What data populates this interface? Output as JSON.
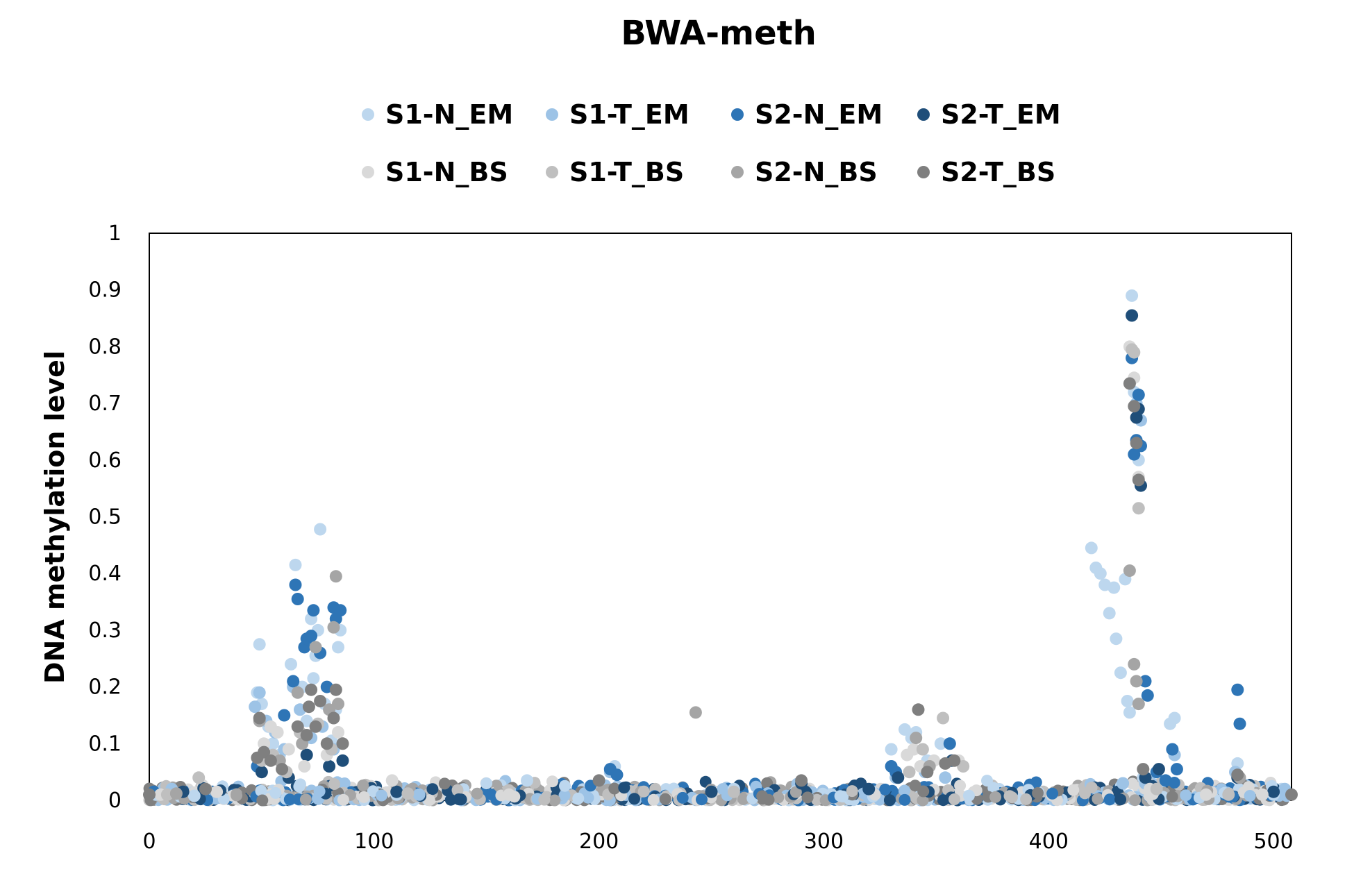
{
  "chart_data": {
    "type": "scatter",
    "title": "BWA-meth",
    "xlabel": "",
    "ylabel": "DNA methylation level",
    "xlim": [
      0,
      508
    ],
    "ylim": [
      0,
      1
    ],
    "x_ticks": [
      "0",
      "100",
      "200",
      "300",
      "400",
      "500"
    ],
    "y_ticks": [
      "0",
      "0.1",
      "0.2",
      "0.3",
      "0.4",
      "0.5",
      "0.6",
      "0.7",
      "0.8",
      "0.9",
      "1"
    ],
    "grid": false,
    "legend_position": "top",
    "series": [
      {
        "name": "S1-N_EM",
        "color": "#bdd7ee",
        "points": [
          [
            3,
            0.01
          ],
          [
            20,
            0.008
          ],
          [
            48,
            0.19
          ],
          [
            49,
            0.275
          ],
          [
            50,
            0.17
          ],
          [
            53,
            0.13
          ],
          [
            55,
            0.1
          ],
          [
            58,
            0.08
          ],
          [
            63,
            0.24
          ],
          [
            65,
            0.415
          ],
          [
            68,
            0.2
          ],
          [
            70,
            0.14
          ],
          [
            72,
            0.32
          ],
          [
            73,
            0.215
          ],
          [
            74,
            0.255
          ],
          [
            75,
            0.3
          ],
          [
            76,
            0.478
          ],
          [
            78,
            0.17
          ],
          [
            81,
            0.105
          ],
          [
            83,
            0.16
          ],
          [
            84,
            0.27
          ],
          [
            85,
            0.3
          ],
          [
            110,
            0.01
          ],
          [
            168,
            0.035
          ],
          [
            207,
            0.06
          ],
          [
            260,
            0.02
          ],
          [
            330,
            0.09
          ],
          [
            336,
            0.125
          ],
          [
            339,
            0.11
          ],
          [
            341,
            0.12
          ],
          [
            346,
            0.07
          ],
          [
            352,
            0.1
          ],
          [
            356,
            0.1
          ],
          [
            419,
            0.445
          ],
          [
            421,
            0.41
          ],
          [
            423,
            0.4
          ],
          [
            425,
            0.38
          ],
          [
            427,
            0.33
          ],
          [
            429,
            0.375
          ],
          [
            430,
            0.285
          ],
          [
            432,
            0.225
          ],
          [
            434,
            0.39
          ],
          [
            435,
            0.175
          ],
          [
            436,
            0.155
          ],
          [
            437,
            0.89
          ],
          [
            438,
            0.72
          ],
          [
            440,
            0.6
          ],
          [
            442,
            0.04
          ],
          [
            454,
            0.135
          ],
          [
            456,
            0.145
          ],
          [
            484,
            0.065
          ],
          [
            500,
            0.01
          ]
        ]
      },
      {
        "name": "S1-T_EM",
        "color": "#9dc3e6",
        "points": [
          [
            10,
            0.02
          ],
          [
            47,
            0.165
          ],
          [
            49,
            0.19
          ],
          [
            52,
            0.14
          ],
          [
            56,
            0.12
          ],
          [
            60,
            0.09
          ],
          [
            64,
            0.2
          ],
          [
            67,
            0.16
          ],
          [
            72,
            0.11
          ],
          [
            77,
            0.13
          ],
          [
            82,
            0.09
          ],
          [
            120,
            0.01
          ],
          [
            205,
            0.05
          ],
          [
            332,
            0.04
          ],
          [
            345,
            0.05
          ],
          [
            354,
            0.04
          ],
          [
            433,
            0.03
          ],
          [
            437,
            0.78
          ],
          [
            439,
            0.7
          ],
          [
            441,
            0.67
          ],
          [
            443,
            0.03
          ],
          [
            456,
            0.08
          ],
          [
            483,
            0.05
          ],
          [
            505,
            0.02
          ]
        ]
      },
      {
        "name": "S2-N_EM",
        "color": "#2e75b6",
        "points": [
          [
            2,
            0.015
          ],
          [
            48,
            0.06
          ],
          [
            60,
            0.15
          ],
          [
            64,
            0.21
          ],
          [
            65,
            0.38
          ],
          [
            66,
            0.355
          ],
          [
            69,
            0.27
          ],
          [
            70,
            0.285
          ],
          [
            72,
            0.29
          ],
          [
            73,
            0.335
          ],
          [
            76,
            0.26
          ],
          [
            79,
            0.2
          ],
          [
            82,
            0.34
          ],
          [
            83,
            0.32
          ],
          [
            85,
            0.335
          ],
          [
            205,
            0.055
          ],
          [
            208,
            0.045
          ],
          [
            330,
            0.06
          ],
          [
            332,
            0.05
          ],
          [
            356,
            0.1
          ],
          [
            437,
            0.78
          ],
          [
            438,
            0.61
          ],
          [
            439,
            0.635
          ],
          [
            440,
            0.715
          ],
          [
            441,
            0.625
          ],
          [
            443,
            0.21
          ],
          [
            444,
            0.185
          ],
          [
            448,
            0.05
          ],
          [
            452,
            0.035
          ],
          [
            455,
            0.09
          ],
          [
            457,
            0.055
          ],
          [
            484,
            0.195
          ],
          [
            485,
            0.135
          ]
        ]
      },
      {
        "name": "S2-T_EM",
        "color": "#1f4e79",
        "points": [
          [
            15,
            0.015
          ],
          [
            50,
            0.05
          ],
          [
            62,
            0.04
          ],
          [
            70,
            0.08
          ],
          [
            80,
            0.06
          ],
          [
            86,
            0.07
          ],
          [
            110,
            0.015
          ],
          [
            250,
            0.015
          ],
          [
            290,
            0.03
          ],
          [
            320,
            0.02
          ],
          [
            333,
            0.04
          ],
          [
            357,
            0.07
          ],
          [
            437,
            0.855
          ],
          [
            439,
            0.675
          ],
          [
            440,
            0.69
          ],
          [
            441,
            0.555
          ],
          [
            443,
            0.04
          ],
          [
            446,
            0.025
          ],
          [
            449,
            0.055
          ],
          [
            484,
            0.04
          ],
          [
            500,
            0.015
          ]
        ]
      },
      {
        "name": "S1-N_BS",
        "color": "#d9d9d9",
        "points": [
          [
            5,
            0.01
          ],
          [
            30,
            0.015
          ],
          [
            51,
            0.1
          ],
          [
            54,
            0.13
          ],
          [
            57,
            0.12
          ],
          [
            62,
            0.09
          ],
          [
            69,
            0.06
          ],
          [
            74,
            0.13
          ],
          [
            79,
            0.08
          ],
          [
            84,
            0.12
          ],
          [
            108,
            0.035
          ],
          [
            160,
            0.01
          ],
          [
            337,
            0.08
          ],
          [
            340,
            0.09
          ],
          [
            343,
            0.06
          ],
          [
            349,
            0.07
          ],
          [
            360,
            0.07
          ],
          [
            436,
            0.8
          ],
          [
            438,
            0.745
          ],
          [
            440,
            0.57
          ],
          [
            445,
            0.02
          ],
          [
            470,
            0.01
          ],
          [
            495,
            0.01
          ]
        ]
      },
      {
        "name": "S1-T_BS",
        "color": "#bfbfbf",
        "points": [
          [
            8,
            0.01
          ],
          [
            22,
            0.04
          ],
          [
            50,
            0.07
          ],
          [
            55,
            0.08
          ],
          [
            61,
            0.05
          ],
          [
            67,
            0.12
          ],
          [
            75,
            0.135
          ],
          [
            81,
            0.09
          ],
          [
            86,
            0.1
          ],
          [
            115,
            0.012
          ],
          [
            260,
            0.015
          ],
          [
            338,
            0.05
          ],
          [
            344,
            0.09
          ],
          [
            353,
            0.145
          ],
          [
            362,
            0.06
          ],
          [
            437,
            0.795
          ],
          [
            438,
            0.79
          ],
          [
            440,
            0.515
          ],
          [
            448,
            0.02
          ],
          [
            480,
            0.01
          ]
        ]
      },
      {
        "name": "S2-N_BS",
        "color": "#a5a5a5",
        "points": [
          [
            12,
            0.012
          ],
          [
            49,
            0.14
          ],
          [
            58,
            0.07
          ],
          [
            66,
            0.19
          ],
          [
            68,
            0.1
          ],
          [
            74,
            0.27
          ],
          [
            80,
            0.16
          ],
          [
            82,
            0.305
          ],
          [
            83,
            0.395
          ],
          [
            84,
            0.17
          ],
          [
            243,
            0.155
          ],
          [
            341,
            0.11
          ],
          [
            347,
            0.06
          ],
          [
            436,
            0.405
          ],
          [
            438,
            0.24
          ],
          [
            439,
            0.21
          ],
          [
            440,
            0.17
          ],
          [
            485,
            0.04
          ]
        ]
      },
      {
        "name": "S2-T_BS",
        "color": "#7f7f7f",
        "points": [
          [
            0,
            0.01
          ],
          [
            25,
            0.02
          ],
          [
            48,
            0.075
          ],
          [
            49,
            0.145
          ],
          [
            51,
            0.085
          ],
          [
            54,
            0.07
          ],
          [
            59,
            0.055
          ],
          [
            66,
            0.13
          ],
          [
            70,
            0.115
          ],
          [
            71,
            0.165
          ],
          [
            72,
            0.195
          ],
          [
            74,
            0.13
          ],
          [
            76,
            0.175
          ],
          [
            79,
            0.1
          ],
          [
            82,
            0.145
          ],
          [
            83,
            0.195
          ],
          [
            86,
            0.1
          ],
          [
            200,
            0.035
          ],
          [
            290,
            0.035
          ],
          [
            342,
            0.16
          ],
          [
            346,
            0.05
          ],
          [
            354,
            0.065
          ],
          [
            358,
            0.07
          ],
          [
            436,
            0.735
          ],
          [
            438,
            0.695
          ],
          [
            439,
            0.63
          ],
          [
            440,
            0.565
          ],
          [
            442,
            0.055
          ],
          [
            484,
            0.045
          ],
          [
            508,
            0.01
          ]
        ]
      }
    ]
  }
}
